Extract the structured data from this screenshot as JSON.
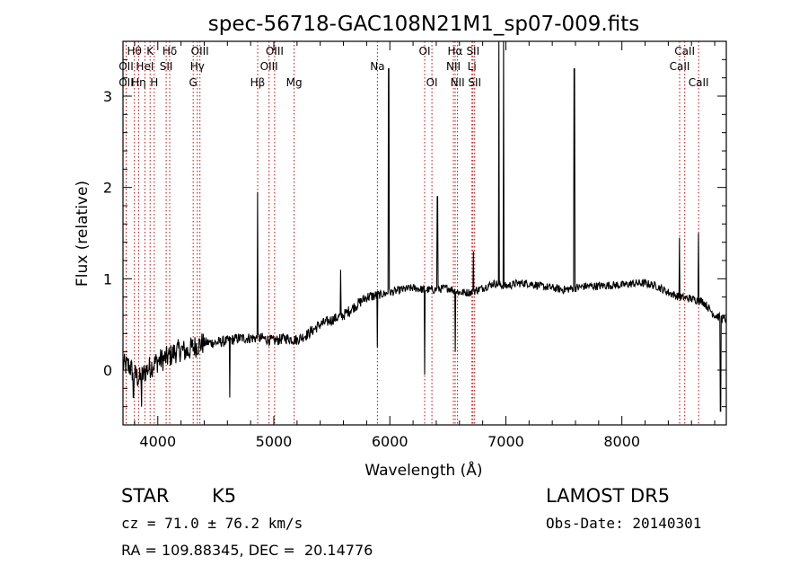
{
  "chart_data": {
    "type": "line",
    "title": "spec-56718-GAC108N21M1_sp07-009.fits",
    "xlabel": "Wavelength (Å)",
    "ylabel": "Flux (relative)",
    "xlim": [
      3700,
      8900
    ],
    "ylim": [
      -0.6,
      3.6
    ],
    "xticks": [
      4000,
      5000,
      6000,
      7000,
      8000
    ],
    "yticks": [
      0,
      1,
      2,
      3
    ],
    "grid": false,
    "line_color": "#000000",
    "marker_line_color": "#cc0000",
    "spectrum_anchors": [
      [
        3700,
        0.05
      ],
      [
        3750,
        0.05
      ],
      [
        3800,
        -0.05
      ],
      [
        3850,
        -0.1
      ],
      [
        3900,
        0.0
      ],
      [
        3950,
        0.05
      ],
      [
        4000,
        0.1
      ],
      [
        4050,
        0.12
      ],
      [
        4100,
        0.15
      ],
      [
        4150,
        0.2
      ],
      [
        4200,
        0.22
      ],
      [
        4250,
        0.2
      ],
      [
        4300,
        0.25
      ],
      [
        4400,
        0.3
      ],
      [
        4500,
        0.3
      ],
      [
        4600,
        0.32
      ],
      [
        4700,
        0.35
      ],
      [
        4800,
        0.35
      ],
      [
        4900,
        0.35
      ],
      [
        5000,
        0.32
      ],
      [
        5100,
        0.35
      ],
      [
        5200,
        0.33
      ],
      [
        5300,
        0.4
      ],
      [
        5400,
        0.5
      ],
      [
        5500,
        0.55
      ],
      [
        5600,
        0.6
      ],
      [
        5700,
        0.7
      ],
      [
        5800,
        0.8
      ],
      [
        5900,
        0.82
      ],
      [
        6000,
        0.85
      ],
      [
        6100,
        0.88
      ],
      [
        6200,
        0.9
      ],
      [
        6300,
        0.88
      ],
      [
        6400,
        0.88
      ],
      [
        6500,
        0.9
      ],
      [
        6600,
        0.85
      ],
      [
        6700,
        0.85
      ],
      [
        6800,
        0.9
      ],
      [
        6900,
        0.95
      ],
      [
        7000,
        0.92
      ],
      [
        7100,
        0.95
      ],
      [
        7200,
        0.95
      ],
      [
        7300,
        0.92
      ],
      [
        7400,
        0.9
      ],
      [
        7500,
        0.88
      ],
      [
        7600,
        0.9
      ],
      [
        7700,
        0.92
      ],
      [
        7800,
        0.92
      ],
      [
        7900,
        0.93
      ],
      [
        8000,
        0.93
      ],
      [
        8100,
        0.95
      ],
      [
        8200,
        0.95
      ],
      [
        8300,
        0.92
      ],
      [
        8400,
        0.85
      ],
      [
        8500,
        0.8
      ],
      [
        8600,
        0.78
      ],
      [
        8700,
        0.75
      ],
      [
        8800,
        0.6
      ],
      [
        8900,
        0.55
      ]
    ],
    "spectrum_features": [
      {
        "x": 3790,
        "y": -0.3
      },
      {
        "x": 3860,
        "y": -0.4
      },
      {
        "x": 4620,
        "y": -0.3
      },
      {
        "x": 4861,
        "y": 1.95
      },
      {
        "x": 5577,
        "y": 1.1
      },
      {
        "x": 5893,
        "y": 0.25
      },
      {
        "x": 5990,
        "y": 3.3
      },
      {
        "x": 6300,
        "y": -0.05
      },
      {
        "x": 6410,
        "y": 1.9
      },
      {
        "x": 6565,
        "y": 0.2
      },
      {
        "x": 6720,
        "y": 1.3
      },
      {
        "x": 6940,
        "y": 3.6
      },
      {
        "x": 6980,
        "y": 3.6
      },
      {
        "x": 7590,
        "y": 3.3
      },
      {
        "x": 8495,
        "y": 1.45
      },
      {
        "x": 8660,
        "y": 1.5
      },
      {
        "x": 8850,
        "y": -0.45
      }
    ],
    "lines": [
      {
        "label": "Hθ",
        "x": 3798,
        "row": 0
      },
      {
        "label": "OII",
        "x": 3727,
        "row": 1
      },
      {
        "label": "OII",
        "x": 3727,
        "row": 2
      },
      {
        "label": "Hη",
        "x": 3835,
        "row": 2
      },
      {
        "label": "K",
        "x": 3934,
        "row": 0
      },
      {
        "label": "HeI",
        "x": 3889,
        "row": 1
      },
      {
        "label": "H",
        "x": 3969,
        "row": 2
      },
      {
        "label": "Hδ",
        "x": 4102,
        "row": 0
      },
      {
        "label": "SII",
        "x": 4072,
        "row": 1
      },
      {
        "label": "OIII",
        "x": 4363,
        "row": 0
      },
      {
        "label": "Hγ",
        "x": 4341,
        "row": 1
      },
      {
        "label": "G",
        "x": 4305,
        "row": 2
      },
      {
        "label": "Hβ",
        "x": 4861,
        "row": 2
      },
      {
        "label": "OIII",
        "x": 5007,
        "row": 0
      },
      {
        "label": "OIII",
        "x": 4959,
        "row": 1
      },
      {
        "label": "Mg",
        "x": 5175,
        "row": 2
      },
      {
        "label": "Na",
        "x": 5893,
        "row": 1
      },
      {
        "label": "OI",
        "x": 6300,
        "row": 0
      },
      {
        "label": "OI",
        "x": 6363,
        "row": 2
      },
      {
        "label": "Hα",
        "x": 6563,
        "row": 0
      },
      {
        "label": "NII",
        "x": 6548,
        "row": 1
      },
      {
        "label": "NII",
        "x": 6583,
        "row": 2
      },
      {
        "label": "SII",
        "x": 6716,
        "row": 0
      },
      {
        "label": "Li",
        "x": 6708,
        "row": 1
      },
      {
        "label": "SII",
        "x": 6731,
        "row": 2
      },
      {
        "label": "CaII",
        "x": 8542,
        "row": 0
      },
      {
        "label": "CaII",
        "x": 8498,
        "row": 1
      },
      {
        "label": "CaII",
        "x": 8662,
        "row": 2
      }
    ]
  },
  "info": {
    "object_class": "STAR",
    "subclass": "K5",
    "cz": "cz = 71.0 ± 76.2 km/s",
    "coords": "RA = 109.88345, DEC =  20.14776",
    "survey": "LAMOST DR5",
    "obs_date": "Obs-Date: 20140301"
  }
}
